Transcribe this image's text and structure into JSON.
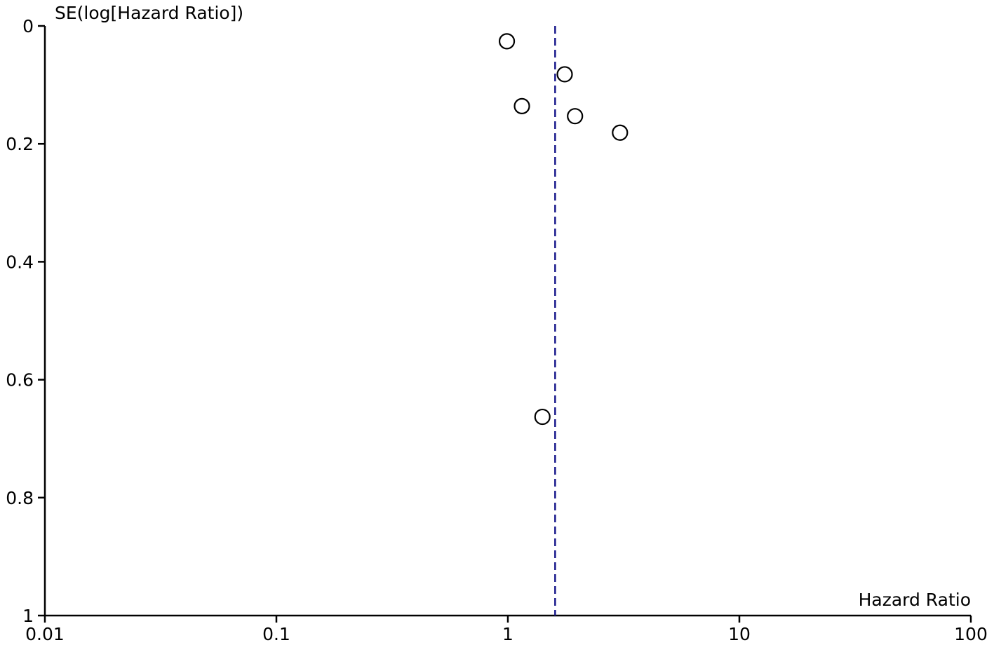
{
  "chart_data": {
    "type": "scatter",
    "subtype": "funnel-plot",
    "xlabel": "Hazard Ratio",
    "ylabel": "SE(log[Hazard Ratio])",
    "x_scale": "log",
    "xlim": [
      0.01,
      100
    ],
    "ylim": [
      0,
      1
    ],
    "y_inverted": true,
    "x_ticks": [
      {
        "value": 0.01,
        "label": "0.01"
      },
      {
        "value": 0.1,
        "label": "0.1"
      },
      {
        "value": 1,
        "label": "1"
      },
      {
        "value": 10,
        "label": "10"
      },
      {
        "value": 100,
        "label": "100"
      }
    ],
    "y_ticks": [
      {
        "value": 0,
        "label": "0"
      },
      {
        "value": 0.2,
        "label": "0.2"
      },
      {
        "value": 0.4,
        "label": "0.4"
      },
      {
        "value": 0.6,
        "label": "0.6"
      },
      {
        "value": 0.8,
        "label": "0.8"
      },
      {
        "value": 1,
        "label": "1"
      }
    ],
    "reference_line": {
      "x": 1.6,
      "style": "dashed",
      "color": "#1a1a8c"
    },
    "points": [
      {
        "x": 0.99,
        "y": 0.026
      },
      {
        "x": 1.76,
        "y": 0.082
      },
      {
        "x": 1.15,
        "y": 0.136
      },
      {
        "x": 1.95,
        "y": 0.153
      },
      {
        "x": 3.05,
        "y": 0.181
      },
      {
        "x": 1.41,
        "y": 0.663
      }
    ],
    "grid": false,
    "legend": "none"
  }
}
